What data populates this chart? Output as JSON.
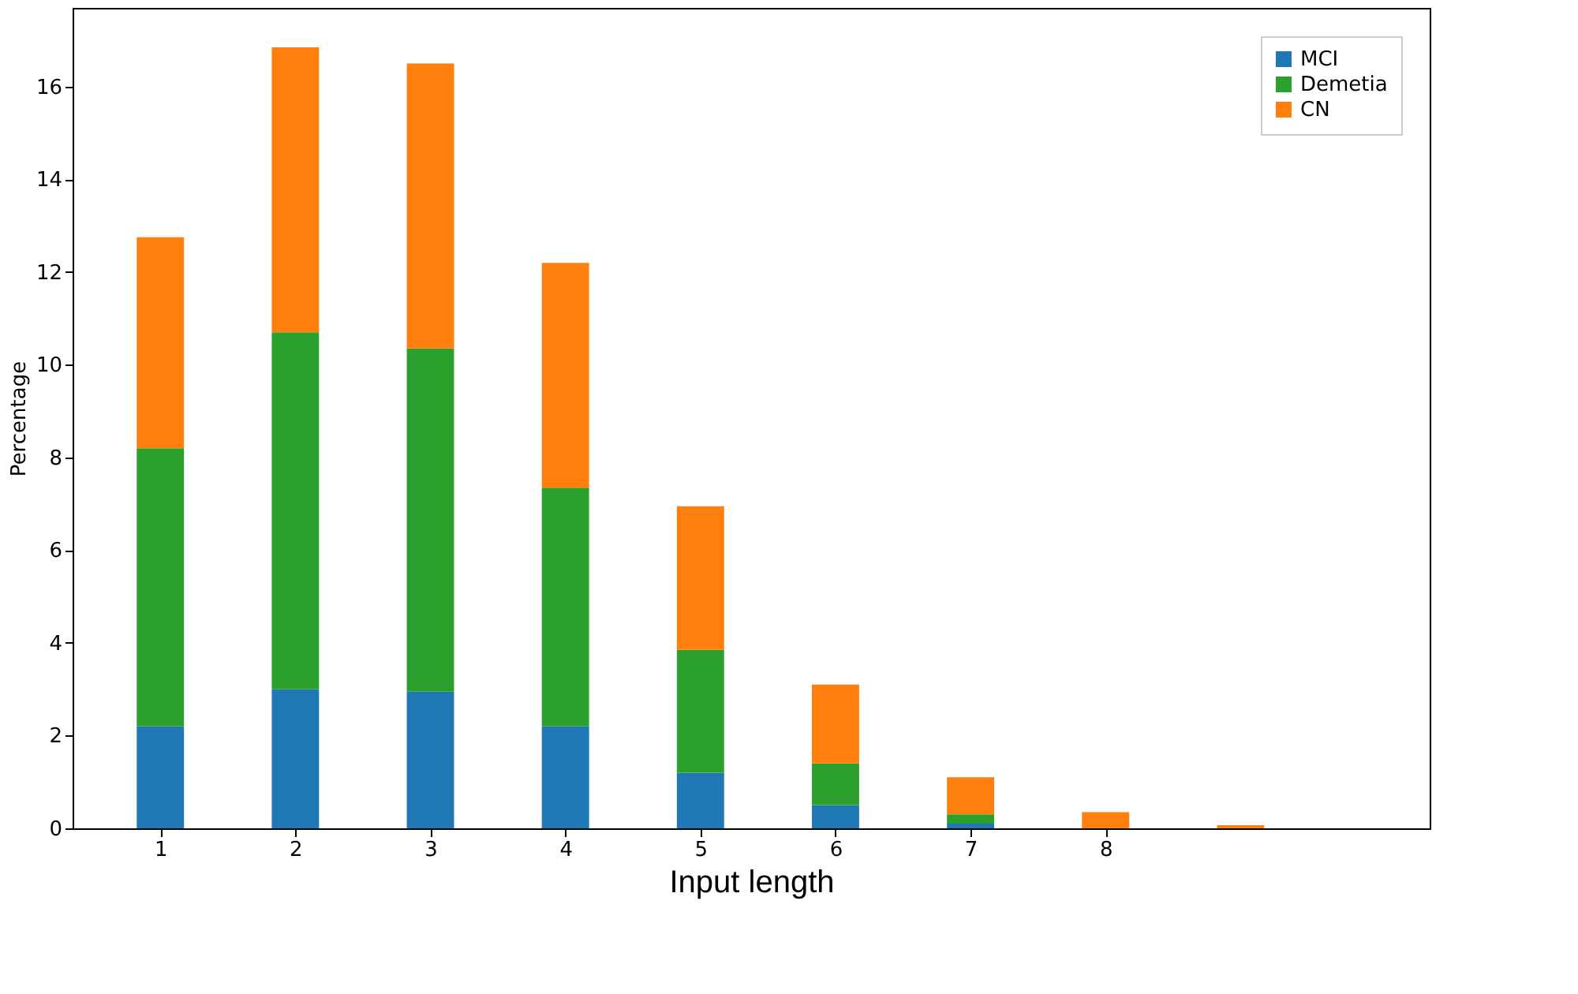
{
  "chart_data": {
    "type": "bar",
    "stacked": true,
    "xlabel": "Input length",
    "ylabel": "Percentage",
    "x": [
      1,
      2,
      3,
      4,
      5,
      6,
      7,
      8,
      9
    ],
    "series": [
      {
        "name": "MCI",
        "color": "#1f77b4",
        "values": [
          2.2,
          3.0,
          2.95,
          2.2,
          1.2,
          0.5,
          0.1,
          0,
          0
        ]
      },
      {
        "name": "Demetia",
        "color": "#2ca02c",
        "values": [
          6.0,
          7.7,
          7.4,
          5.15,
          2.65,
          0.9,
          0.2,
          0,
          0
        ]
      },
      {
        "name": "CN",
        "color": "#ff7f0e",
        "values": [
          4.55,
          6.15,
          6.15,
          4.85,
          3.1,
          1.7,
          0.8,
          0.35,
          0.07
        ]
      }
    ],
    "xlim": [
      0.35,
      10.4
    ],
    "xticks": [
      1,
      2,
      3,
      4,
      5,
      6,
      7,
      8
    ],
    "ylim": [
      0,
      17.7
    ],
    "yticks": [
      0,
      2,
      4,
      6,
      8,
      10,
      12,
      14,
      16
    ],
    "grid": false,
    "legend": "top right"
  }
}
